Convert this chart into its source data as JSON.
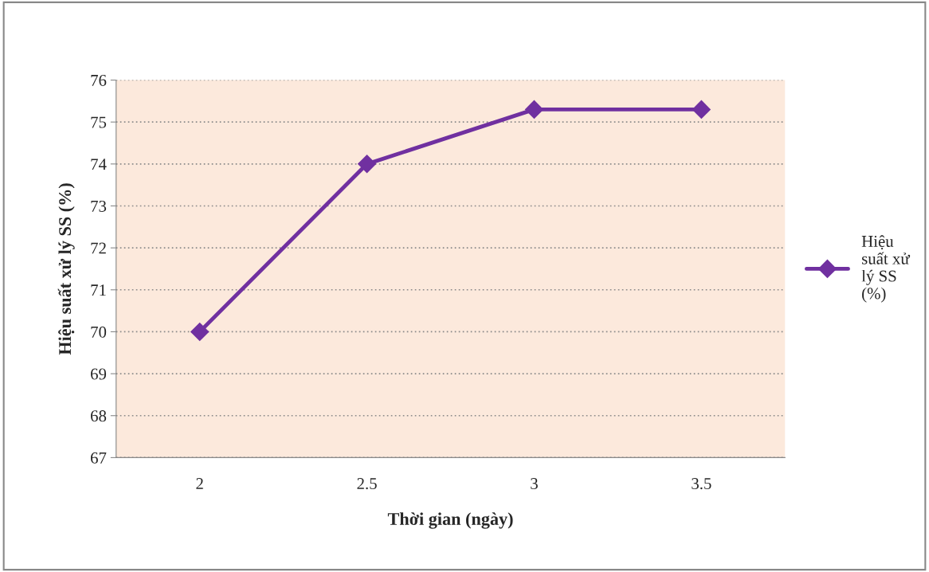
{
  "chart_data": {
    "type": "line",
    "xlabel": "Thời gian (ngày)",
    "ylabel": "Hiệu suất xử lý SS (%)",
    "categories": [
      "2",
      "2.5",
      "3",
      "3.5"
    ],
    "series": [
      {
        "name": "Hiệu suất xử lý SS (%)",
        "color": "#7030a0",
        "values": [
          70,
          74,
          75.3,
          75.3
        ]
      }
    ],
    "ylim": [
      67,
      76
    ],
    "yticks": [
      67,
      68,
      69,
      70,
      71,
      72,
      73,
      74,
      75,
      76
    ],
    "grid": "y",
    "legend": "right",
    "marker": "diamond",
    "line_style": "solid"
  }
}
